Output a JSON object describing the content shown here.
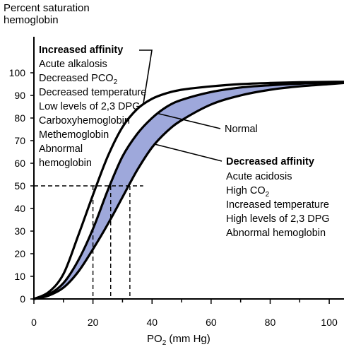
{
  "chart_data": {
    "type": "line",
    "ylabel_line1": "Percent saturation",
    "ylabel_line2": "hemoglobin",
    "xlabel_main": "PO",
    "xlabel_sub": "2",
    "xlabel_rest": " (mm Hg)",
    "xlim": [
      0,
      105
    ],
    "ylim": [
      0,
      100
    ],
    "x_ticks": [
      "0",
      "20",
      "40",
      "60",
      "80",
      "100"
    ],
    "y_ticks": [
      "0",
      "10",
      "20",
      "30",
      "40",
      "50",
      "60",
      "70",
      "80",
      "90",
      "100"
    ],
    "grid": false,
    "series": [
      {
        "name": "Increased affinity",
        "points": [
          [
            0,
            0
          ],
          [
            5,
            3
          ],
          [
            10,
            11
          ],
          [
            15,
            28
          ],
          [
            20,
            46
          ],
          [
            25,
            63
          ],
          [
            30,
            76
          ],
          [
            35,
            84
          ],
          [
            40,
            88.5
          ],
          [
            45,
            91
          ],
          [
            50,
            92.5
          ],
          [
            60,
            94
          ],
          [
            70,
            95
          ],
          [
            80,
            95.5
          ],
          [
            90,
            95.8
          ],
          [
            100,
            96
          ],
          [
            105,
            96
          ]
        ]
      },
      {
        "name": "Normal",
        "points": [
          [
            0,
            0
          ],
          [
            5,
            2
          ],
          [
            10,
            7
          ],
          [
            15,
            17
          ],
          [
            20,
            31
          ],
          [
            25,
            48
          ],
          [
            30,
            63
          ],
          [
            35,
            73
          ],
          [
            40,
            80
          ],
          [
            45,
            85
          ],
          [
            50,
            88
          ],
          [
            60,
            91.5
          ],
          [
            70,
            93.5
          ],
          [
            80,
            94.5
          ],
          [
            90,
            95.2
          ],
          [
            100,
            95.7
          ],
          [
            105,
            96
          ]
        ]
      },
      {
        "name": "Decreased affinity",
        "points": [
          [
            0,
            0
          ],
          [
            5,
            1.5
          ],
          [
            10,
            5
          ],
          [
            15,
            12
          ],
          [
            20,
            22
          ],
          [
            25,
            33
          ],
          [
            30,
            45
          ],
          [
            35,
            57
          ],
          [
            40,
            67
          ],
          [
            45,
            74
          ],
          [
            50,
            79
          ],
          [
            60,
            86
          ],
          [
            70,
            90
          ],
          [
            80,
            92.5
          ],
          [
            90,
            94
          ],
          [
            100,
            95
          ],
          [
            105,
            95.5
          ]
        ]
      }
    ],
    "reference_line_y": 50,
    "reference_lines_x": [
      20,
      26,
      32.5
    ],
    "shaded_band": "between Normal and Decreased affinity",
    "band_color": "#9ea8db",
    "annotations": {
      "increased_title": "Increased affinity",
      "increased_items": [
        "Acute alkalosis",
        "Decreased PCO",
        "Decreased temperature",
        "Low levels of 2,3 DPG",
        "Carboxyhemoglobin",
        "Methemoglobin",
        "Abnormal",
        "hemoglobin"
      ],
      "increased_sub": "2",
      "normal_label": "Normal",
      "decreased_title": "Decreased affinity",
      "decreased_items": [
        "Acute acidosis",
        "High CO",
        "Increased temperature",
        "High levels of 2,3 DPG",
        "Abnormal hemoglobin"
      ],
      "decreased_sub": "2"
    }
  }
}
